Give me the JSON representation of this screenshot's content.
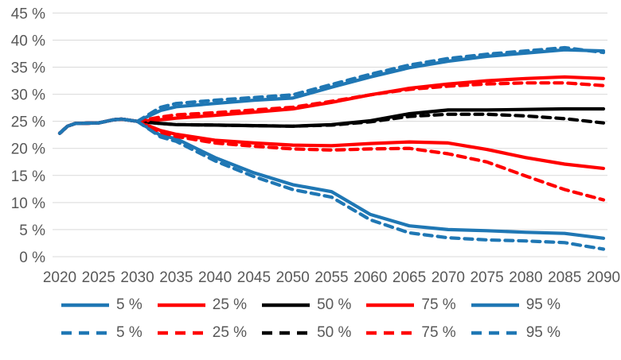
{
  "colors": {
    "blue": "#1F77B4",
    "red": "#FF0000",
    "black": "#000000",
    "gridline": "#D9D9D9",
    "tick_text": "#595959",
    "background": "#FFFFFF"
  },
  "chart_data": {
    "type": "line",
    "title": "",
    "xlabel": "",
    "ylabel": "",
    "ylim": [
      0,
      45
    ],
    "xlim": [
      2020,
      2090
    ],
    "grid": "horizontal-only",
    "legend_position": "bottom",
    "y_ticks": [
      {
        "value": 0,
        "label": "0 %"
      },
      {
        "value": 5,
        "label": "5 %"
      },
      {
        "value": 10,
        "label": "10 %"
      },
      {
        "value": 15,
        "label": "15 %"
      },
      {
        "value": 20,
        "label": "20 %"
      },
      {
        "value": 25,
        "label": "25 %"
      },
      {
        "value": 30,
        "label": "30 %"
      },
      {
        "value": 35,
        "label": "35 %"
      },
      {
        "value": 40,
        "label": "40 %"
      },
      {
        "value": 45,
        "label": "45 %"
      }
    ],
    "x_ticks": [
      {
        "value": 2020,
        "label": "2020"
      },
      {
        "value": 2025,
        "label": "2025"
      },
      {
        "value": 2030,
        "label": "2030"
      },
      {
        "value": 2035,
        "label": "2035"
      },
      {
        "value": 2040,
        "label": "2040"
      },
      {
        "value": 2045,
        "label": "2045"
      },
      {
        "value": 2050,
        "label": "2050"
      },
      {
        "value": 2055,
        "label": "2055"
      },
      {
        "value": 2060,
        "label": "2060"
      },
      {
        "value": 2065,
        "label": "2065"
      },
      {
        "value": 2070,
        "label": "2070"
      },
      {
        "value": 2075,
        "label": "2075"
      },
      {
        "value": 2080,
        "label": "2080"
      },
      {
        "value": 2085,
        "label": "2085"
      },
      {
        "value": 2090,
        "label": "2090"
      }
    ],
    "x": [
      2020,
      2021,
      2022,
      2025,
      2027,
      2028,
      2030,
      2033,
      2035,
      2040,
      2045,
      2050,
      2055,
      2060,
      2065,
      2070,
      2075,
      2080,
      2085,
      2090
    ],
    "series": [
      {
        "id": "solid-50",
        "name": "50 %",
        "style": "solid",
        "color": "#000000",
        "values": [
          22.8,
          24.1,
          24.6,
          24.7,
          25.3,
          25.4,
          25.0,
          24.6,
          24.4,
          24.3,
          24.2,
          24.1,
          24.4,
          25.1,
          26.4,
          27.1,
          27.1,
          27.2,
          27.3,
          27.3
        ]
      },
      {
        "id": "solid-25",
        "name": "25 %",
        "style": "solid",
        "color": "#FF0000",
        "values": [
          22.8,
          24.1,
          24.6,
          24.7,
          25.3,
          25.4,
          25.0,
          23.3,
          22.6,
          21.5,
          21.0,
          20.6,
          20.5,
          20.9,
          21.2,
          21.0,
          19.8,
          18.3,
          17.1,
          16.3
        ]
      },
      {
        "id": "solid-75",
        "name": "75 %",
        "style": "solid",
        "color": "#FF0000",
        "values": [
          22.8,
          24.1,
          24.6,
          24.7,
          25.3,
          25.4,
          25.0,
          25.3,
          25.6,
          26.1,
          26.7,
          27.3,
          28.5,
          29.9,
          31.1,
          31.9,
          32.5,
          32.9,
          33.2,
          32.9
        ]
      },
      {
        "id": "solid-5",
        "name": "5 %",
        "style": "solid",
        "color": "#1F77B4",
        "values": [
          22.8,
          24.1,
          24.6,
          24.7,
          25.3,
          25.4,
          25.0,
          22.4,
          21.8,
          18.3,
          15.5,
          13.3,
          12.0,
          7.8,
          5.7,
          5.0,
          4.8,
          4.5,
          4.3,
          3.4
        ]
      },
      {
        "id": "solid-95",
        "name": "95 %",
        "style": "solid",
        "color": "#1F77B4",
        "values": [
          22.8,
          24.1,
          24.6,
          24.7,
          25.3,
          25.4,
          25.0,
          27.0,
          27.7,
          28.3,
          28.9,
          29.3,
          31.3,
          33.2,
          34.9,
          36.1,
          37.0,
          37.6,
          38.2,
          38.0
        ]
      },
      {
        "id": "dashed-50",
        "name": "50 %",
        "style": "dashed",
        "color": "#000000",
        "values": [
          22.8,
          24.1,
          24.6,
          24.7,
          25.3,
          25.4,
          25.0,
          24.6,
          24.4,
          24.3,
          24.2,
          24.1,
          24.3,
          24.9,
          25.9,
          26.3,
          26.3,
          26.0,
          25.5,
          24.7
        ]
      },
      {
        "id": "dashed-25",
        "name": "25 %",
        "style": "dashed",
        "color": "#FF0000",
        "values": [
          22.8,
          24.1,
          24.6,
          24.7,
          25.3,
          25.4,
          25.0,
          23.0,
          22.2,
          21.0,
          20.4,
          19.9,
          19.7,
          19.9,
          20.0,
          19.0,
          17.5,
          14.9,
          12.4,
          10.5
        ]
      },
      {
        "id": "dashed-75",
        "name": "75 %",
        "style": "dashed",
        "color": "#FF0000",
        "values": [
          22.8,
          24.1,
          24.6,
          24.7,
          25.3,
          25.4,
          25.0,
          25.8,
          26.2,
          26.6,
          27.1,
          27.6,
          28.7,
          29.9,
          30.9,
          31.5,
          31.9,
          32.1,
          32.1,
          31.6
        ]
      },
      {
        "id": "dashed-5",
        "name": "5 %",
        "style": "dashed",
        "color": "#1F77B4",
        "values": [
          22.8,
          24.1,
          24.6,
          24.7,
          25.3,
          25.4,
          25.0,
          22.1,
          21.3,
          17.7,
          14.8,
          12.4,
          11.0,
          6.8,
          4.4,
          3.5,
          3.1,
          2.9,
          2.6,
          1.4
        ]
      },
      {
        "id": "dashed-95",
        "name": "95 %",
        "style": "dashed",
        "color": "#1F77B4",
        "values": [
          22.8,
          24.1,
          24.6,
          24.7,
          25.3,
          25.4,
          25.0,
          27.6,
          28.3,
          28.9,
          29.4,
          29.9,
          31.8,
          33.7,
          35.4,
          36.6,
          37.4,
          38.0,
          38.6,
          37.7
        ]
      }
    ],
    "legend": {
      "rows": [
        {
          "style": "solid",
          "items": [
            {
              "label": "5 %",
              "color": "#1F77B4"
            },
            {
              "label": "25 %",
              "color": "#FF0000"
            },
            {
              "label": "50 %",
              "color": "#000000"
            },
            {
              "label": "75 %",
              "color": "#FF0000"
            },
            {
              "label": "95 %",
              "color": "#1F77B4"
            }
          ]
        },
        {
          "style": "dashed",
          "items": [
            {
              "label": "5 %",
              "color": "#1F77B4"
            },
            {
              "label": "25 %",
              "color": "#FF0000"
            },
            {
              "label": "50 %",
              "color": "#000000"
            },
            {
              "label": "75 %",
              "color": "#FF0000"
            },
            {
              "label": "95 %",
              "color": "#1F77B4"
            }
          ]
        }
      ]
    }
  }
}
